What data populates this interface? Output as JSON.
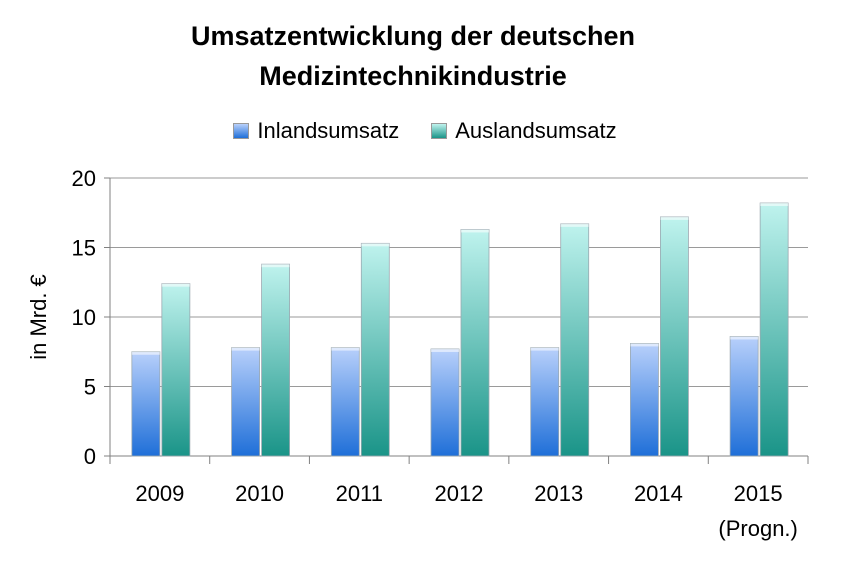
{
  "chart_data": {
    "type": "bar",
    "title_line1": "Umsatzentwicklung der deutschen",
    "title_line2": "Medizintechnikindustrie",
    "ylabel": "in Mrd. €",
    "ylim": [
      0,
      20
    ],
    "yticks": [
      "0",
      "5",
      "10",
      "15",
      "20"
    ],
    "categories": [
      "2009",
      "2010",
      "2011",
      "2012",
      "2013",
      "2014",
      "2015"
    ],
    "category_sublabels": [
      "",
      "",
      "",
      "",
      "",
      "",
      "(Progn.)"
    ],
    "series": [
      {
        "name": "Inlandsumsatz",
        "values": [
          7.5,
          7.8,
          7.8,
          7.7,
          7.8,
          8.1,
          8.6
        ],
        "color_top": "#b8d0fb",
        "color_bottom": "#1f6fd8"
      },
      {
        "name": "Auslandsumsatz",
        "values": [
          12.4,
          13.8,
          15.3,
          16.3,
          16.7,
          17.2,
          18.2
        ],
        "color_top": "#bff3ee",
        "color_bottom": "#1a9488"
      }
    ],
    "legend_position": "top",
    "grid": true
  }
}
